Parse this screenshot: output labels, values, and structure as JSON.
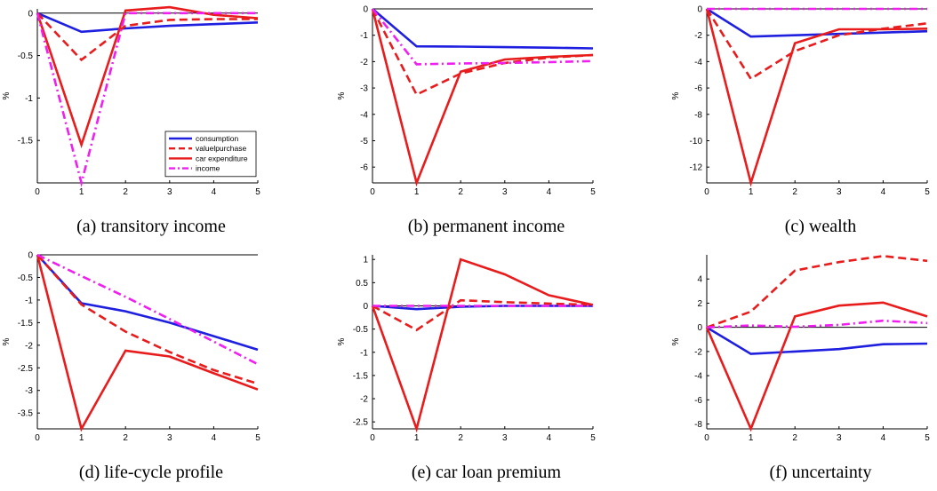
{
  "figure": {
    "series_colors": {
      "consumption": "#1f1fe0",
      "valuelpurchase": "#e81c1c",
      "car expenditure": "#e81c1c",
      "income": "#f01ef0"
    }
  },
  "chart_data": [
    {
      "type": "line",
      "caption": "(a) transitory income",
      "ylabel": "%",
      "x": [
        0,
        1,
        2,
        3,
        4,
        5
      ],
      "xlim": [
        0,
        5
      ],
      "ylim": [
        -2,
        0.05
      ],
      "xticks": [
        "0",
        "1",
        "2",
        "3",
        "4",
        "5"
      ],
      "yticks": [
        0,
        -0.5,
        -1,
        -1.5
      ],
      "yticklabels": [
        "0",
        "-0.5",
        "-1",
        "-1.5"
      ],
      "legend": {
        "show": true,
        "location": "bottom-right"
      },
      "series": [
        {
          "name": "consumption",
          "style": "solid",
          "values": [
            0,
            -0.22,
            -0.18,
            -0.15,
            -0.13,
            -0.11
          ]
        },
        {
          "name": "valuelpurchase",
          "style": "dashed",
          "values": [
            0,
            -0.55,
            -0.15,
            -0.08,
            -0.07,
            -0.07
          ]
        },
        {
          "name": "car expenditure",
          "style": "solid",
          "values": [
            0,
            -1.55,
            0.03,
            0.07,
            -0.02,
            -0.06
          ]
        },
        {
          "name": "income",
          "style": "dashdot",
          "values": [
            0,
            -2.0,
            0,
            0,
            0,
            0
          ]
        }
      ]
    },
    {
      "type": "line",
      "caption": "(b) permanent income",
      "ylabel": "%",
      "x": [
        0,
        1,
        2,
        3,
        4,
        5
      ],
      "xlim": [
        0,
        5
      ],
      "ylim": [
        -6.6,
        0
      ],
      "xticks": [
        "0",
        "1",
        "2",
        "3",
        "4",
        "5"
      ],
      "yticks": [
        0,
        -1,
        -2,
        -3,
        -4,
        -5,
        -6
      ],
      "yticklabels": [
        "0",
        "-1",
        "-2",
        "-3",
        "-4",
        "-5",
        "-6"
      ],
      "legend": {
        "show": false
      },
      "series": [
        {
          "name": "consumption",
          "style": "solid",
          "values": [
            0,
            -1.42,
            -1.43,
            -1.45,
            -1.47,
            -1.5
          ]
        },
        {
          "name": "valuelpurchase",
          "style": "dashed",
          "values": [
            0,
            -3.25,
            -2.45,
            -2.05,
            -1.85,
            -1.75
          ]
        },
        {
          "name": "car expenditure",
          "style": "solid",
          "values": [
            0,
            -6.6,
            -2.38,
            -1.92,
            -1.82,
            -1.75
          ]
        },
        {
          "name": "income",
          "style": "dashdot",
          "values": [
            0,
            -2.1,
            -2.07,
            -2.05,
            -2.02,
            -1.98
          ]
        }
      ]
    },
    {
      "type": "line",
      "caption": "(c) wealth",
      "ylabel": "%",
      "x": [
        0,
        1,
        2,
        3,
        4,
        5
      ],
      "xlim": [
        0,
        5
      ],
      "ylim": [
        -13.2,
        0
      ],
      "xticks": [
        "0",
        "1",
        "2",
        "3",
        "4",
        "5"
      ],
      "yticks": [
        0,
        -2,
        -4,
        -6,
        -8,
        -10,
        -12
      ],
      "yticklabels": [
        "0",
        "-2",
        "-4",
        "-6",
        "-8",
        "-10",
        "-12"
      ],
      "legend": {
        "show": false
      },
      "series": [
        {
          "name": "consumption",
          "style": "solid",
          "values": [
            0,
            -2.1,
            -2.0,
            -1.9,
            -1.8,
            -1.7
          ]
        },
        {
          "name": "valuelpurchase",
          "style": "dashed",
          "values": [
            0,
            -5.3,
            -3.2,
            -2.0,
            -1.5,
            -1.1
          ]
        },
        {
          "name": "car expenditure",
          "style": "solid",
          "values": [
            0,
            -13.2,
            -2.6,
            -1.55,
            -1.55,
            -1.5
          ]
        },
        {
          "name": "income",
          "style": "dashdot",
          "values": [
            0,
            0,
            0,
            0,
            0,
            0
          ]
        }
      ]
    },
    {
      "type": "line",
      "caption": "(d) life-cycle profile",
      "ylabel": "%",
      "x": [
        0,
        1,
        2,
        3,
        4,
        5
      ],
      "xlim": [
        0,
        5
      ],
      "ylim": [
        -3.85,
        0
      ],
      "xticks": [
        "0",
        "1",
        "2",
        "3",
        "4",
        "5"
      ],
      "yticks": [
        0,
        -0.5,
        -1,
        -1.5,
        -2,
        -2.5,
        -3,
        -3.5
      ],
      "yticklabels": [
        "0",
        "-0.5",
        "-1",
        "-1.5",
        "-2",
        "-2.5",
        "-3",
        "-3.5"
      ],
      "legend": {
        "show": false
      },
      "series": [
        {
          "name": "consumption",
          "style": "solid",
          "values": [
            0,
            -1.07,
            -1.25,
            -1.5,
            -1.8,
            -2.1
          ]
        },
        {
          "name": "valuelpurchase",
          "style": "dashed",
          "values": [
            0,
            -1.1,
            -1.7,
            -2.15,
            -2.55,
            -2.85
          ]
        },
        {
          "name": "car expenditure",
          "style": "solid",
          "values": [
            0,
            -3.85,
            -2.12,
            -2.25,
            -2.62,
            -2.98
          ]
        },
        {
          "name": "income",
          "style": "dashdot",
          "values": [
            0,
            -0.47,
            -0.93,
            -1.42,
            -1.92,
            -2.42
          ]
        }
      ]
    },
    {
      "type": "line",
      "caption": "(e) car loan premium",
      "ylabel": "%",
      "x": [
        0,
        1,
        2,
        3,
        4,
        5
      ],
      "xlim": [
        0,
        5
      ],
      "ylim": [
        -2.65,
        1.1
      ],
      "xticks": [
        "0",
        "1",
        "2",
        "3",
        "4",
        "5"
      ],
      "yticks": [
        1,
        0.5,
        0,
        -0.5,
        -1,
        -1.5,
        -2,
        -2.5
      ],
      "yticklabels": [
        "1",
        "0.5",
        "0",
        "-0.5",
        "-1",
        "-1.5",
        "-2",
        "-2.5"
      ],
      "legend": {
        "show": false
      },
      "series": [
        {
          "name": "consumption",
          "style": "solid",
          "values": [
            0,
            -0.07,
            -0.02,
            0,
            0,
            0
          ]
        },
        {
          "name": "valuelpurchase",
          "style": "dashed",
          "values": [
            0,
            -0.52,
            0.12,
            0.08,
            0.05,
            0.02
          ]
        },
        {
          "name": "car expenditure",
          "style": "solid",
          "values": [
            0,
            -2.65,
            1.0,
            0.68,
            0.23,
            0.02
          ]
        },
        {
          "name": "income",
          "style": "dashdot",
          "values": [
            0,
            0,
            0,
            0,
            0,
            0
          ]
        }
      ]
    },
    {
      "type": "line",
      "caption": "(f) uncertainty",
      "ylabel": "%",
      "x": [
        0,
        1,
        2,
        3,
        4,
        5
      ],
      "xlim": [
        0,
        5
      ],
      "ylim": [
        -8.4,
        6
      ],
      "xticks": [
        "0",
        "1",
        "2",
        "3",
        "4",
        "5"
      ],
      "yticks": [
        4,
        2,
        0,
        -2,
        -4,
        -6,
        -8
      ],
      "yticklabels": [
        "4",
        "2",
        "0",
        "-2",
        "-4",
        "-6",
        "-8"
      ],
      "legend": {
        "show": false
      },
      "series": [
        {
          "name": "consumption",
          "style": "solid",
          "values": [
            0,
            -2.2,
            -2.0,
            -1.8,
            -1.4,
            -1.35
          ]
        },
        {
          "name": "valuelpurchase",
          "style": "dashed",
          "values": [
            0,
            1.3,
            4.7,
            5.4,
            5.9,
            5.5
          ]
        },
        {
          "name": "car expenditure",
          "style": "solid",
          "values": [
            0,
            -8.4,
            0.9,
            1.8,
            2.05,
            0.9
          ]
        },
        {
          "name": "income",
          "style": "dashdot",
          "values": [
            0,
            0.15,
            0.05,
            0.2,
            0.55,
            0.35
          ]
        }
      ]
    }
  ]
}
